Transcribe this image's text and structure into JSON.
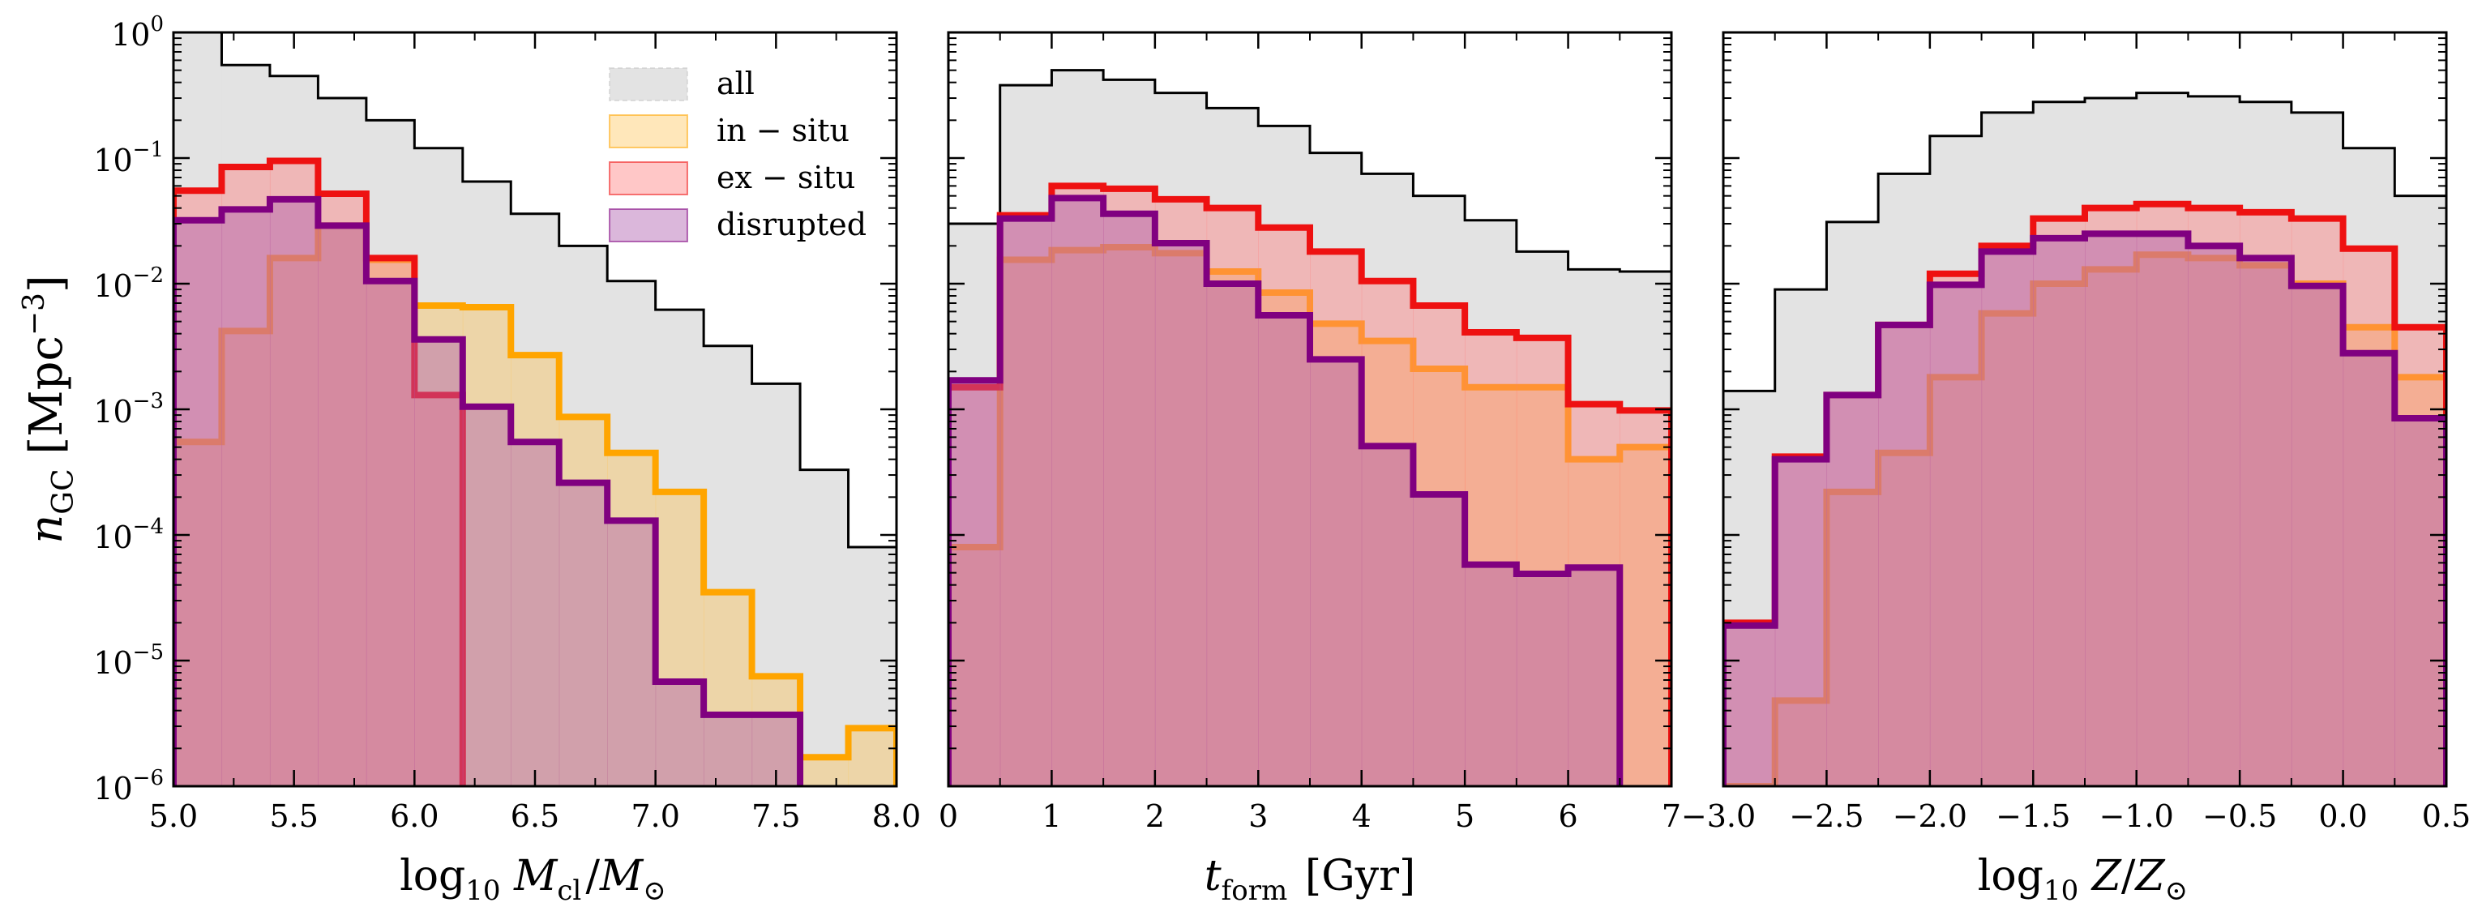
{
  "figure": {
    "ylabel": "n_GC [Mpc^-3]",
    "ylabel_main": "n",
    "ylabel_sub": "GC",
    "ylabel_unit_open": " [Mpc",
    "ylabel_unit_exp": "−3",
    "ylabel_unit_close": "]"
  },
  "legend": {
    "placement": "top-right of first panel",
    "entries": [
      {
        "key": "all",
        "label": "all"
      },
      {
        "key": "insitu",
        "label": "in − situ"
      },
      {
        "key": "exsitu",
        "label": "ex − situ"
      },
      {
        "key": "disrupted",
        "label": "disrupted"
      }
    ]
  },
  "colors": {
    "all_line": "#000000",
    "all_fill": "#e3e3e3",
    "insitu_line": "#ffa500",
    "insitu_fill": "#ffc04a",
    "exsitu_line": "#ee1111",
    "exsitu_fill": "#ff7a7a",
    "disrupted_line": "#800080",
    "disrupted_fill": "#b060b0"
  },
  "chart_data": [
    {
      "type": "area",
      "style": "step histogram",
      "xlabel": "log10 M_cl / M_sun",
      "xlabel_parts": {
        "pre": "log",
        "pre_sub": "10",
        "var": "M",
        "var_sub": "cl",
        "mid": "/M",
        "mid_sub": "⊙"
      },
      "ylabel": "n_GC [Mpc^-3]",
      "yscale": "log",
      "ylim": [
        1e-06,
        1
      ],
      "xlim": [
        5.0,
        8.0
      ],
      "xticks": [
        5.0,
        5.5,
        6.0,
        6.5,
        7.0,
        7.5,
        8.0
      ],
      "xticklabels": [
        "5.0",
        "5.5",
        "6.0",
        "6.5",
        "7.0",
        "7.5",
        "8.0"
      ],
      "yticklabels": [
        {
          "base": "10",
          "exp": "0"
        },
        {
          "base": "10",
          "exp": "−1"
        },
        {
          "base": "10",
          "exp": "−2"
        },
        {
          "base": "10",
          "exp": "−3"
        },
        {
          "base": "10",
          "exp": "−4"
        },
        {
          "base": "10",
          "exp": "−5"
        },
        {
          "base": "10",
          "exp": "−6"
        }
      ],
      "bin_edges": [
        5.0,
        5.2,
        5.4,
        5.6,
        5.8,
        6.0,
        6.2,
        6.4,
        6.6,
        6.8,
        7.0,
        7.2,
        7.4,
        7.6,
        7.8,
        8.0
      ],
      "series": [
        {
          "name": "all",
          "values": [
            1.0,
            0.55,
            0.45,
            0.3,
            0.2,
            0.12,
            0.065,
            0.036,
            0.02,
            0.0105,
            0.0062,
            0.0032,
            0.0016,
            0.00033,
            8e-05
          ]
        },
        {
          "name": "in − situ",
          "values": [
            0.00055,
            0.0042,
            0.016,
            0.029,
            0.0155,
            0.0067,
            0.0065,
            0.0027,
            0.00087,
            0.00045,
            0.00022,
            3.5e-05,
            7.5e-06,
            1.7e-06,
            2.9e-06
          ]
        },
        {
          "name": "ex − situ",
          "values": [
            0.055,
            0.085,
            0.095,
            0.052,
            0.016,
            0.0013,
            null,
            null,
            null,
            null,
            null,
            null,
            null,
            null,
            null
          ]
        },
        {
          "name": "disrupted",
          "values": [
            0.032,
            0.039,
            0.047,
            0.029,
            0.0105,
            0.0036,
            0.00105,
            0.00055,
            0.00026,
            0.00013,
            6.8e-06,
            3.7e-06,
            3.7e-06,
            null,
            null
          ]
        }
      ]
    },
    {
      "type": "area",
      "style": "step histogram",
      "xlabel": "t_form [Gyr]",
      "xlabel_parts": {
        "var": "t",
        "var_sub": "form",
        "unit": " [Gyr]"
      },
      "yscale": "log",
      "ylim": [
        1e-06,
        1
      ],
      "xlim": [
        0,
        7
      ],
      "xticks": [
        0,
        1,
        2,
        3,
        4,
        5,
        6,
        7
      ],
      "xticklabels": [
        "0",
        "1",
        "2",
        "3",
        "4",
        "5",
        "6",
        "7"
      ],
      "bin_edges": [
        0.0,
        0.5,
        1.0,
        1.5,
        2.0,
        2.5,
        3.0,
        3.5,
        4.0,
        4.5,
        5.0,
        5.5,
        6.0,
        6.5,
        7.0
      ],
      "series": [
        {
          "name": "all",
          "values": [
            0.03,
            0.38,
            0.5,
            0.42,
            0.33,
            0.25,
            0.18,
            0.11,
            0.075,
            0.05,
            0.032,
            0.018,
            0.013,
            0.0125
          ]
        },
        {
          "name": "in − situ",
          "values": [
            8e-05,
            0.0155,
            0.0185,
            0.0195,
            0.0175,
            0.0125,
            0.0085,
            0.0048,
            0.0035,
            0.0021,
            0.0015,
            0.0015,
            0.0004,
            0.0005
          ]
        },
        {
          "name": "ex − situ",
          "values": [
            0.0015,
            0.035,
            0.06,
            0.057,
            0.047,
            0.04,
            0.028,
            0.018,
            0.0105,
            0.0067,
            0.0041,
            0.0037,
            0.0011,
            0.00098
          ]
        },
        {
          "name": "disrupted",
          "values": [
            0.0017,
            0.033,
            0.048,
            0.036,
            0.021,
            0.01,
            0.0056,
            0.0025,
            0.00051,
            0.00021,
            5.8e-05,
            4.9e-05,
            5.5e-05,
            null
          ]
        }
      ]
    },
    {
      "type": "area",
      "style": "step histogram",
      "xlabel": "log10 Z / Z_sun",
      "xlabel_parts": {
        "pre": "log",
        "pre_sub": "10",
        "var": "Z",
        "mid": "/Z",
        "mid_sub": "⊙"
      },
      "yscale": "log",
      "ylim": [
        1e-06,
        1
      ],
      "xlim": [
        -3.0,
        0.5
      ],
      "xticks": [
        -3.0,
        -2.5,
        -2.0,
        -1.5,
        -1.0,
        -0.5,
        0.0,
        0.5
      ],
      "xticklabels": [
        "−3.0",
        "−2.5",
        "−2.0",
        "−1.5",
        "−1.0",
        "−0.5",
        "0.0",
        "0.5"
      ],
      "bin_edges": [
        -3.0,
        -2.75,
        -2.5,
        -2.25,
        -2.0,
        -1.75,
        -1.5,
        -1.25,
        -1.0,
        -0.75,
        -0.5,
        -0.25,
        0.0,
        0.25,
        0.5
      ],
      "series": [
        {
          "name": "all",
          "values": [
            0.0014,
            0.009,
            0.031,
            0.075,
            0.15,
            0.23,
            0.28,
            0.3,
            0.33,
            0.31,
            0.28,
            0.23,
            0.12,
            0.05
          ]
        },
        {
          "name": "in − situ",
          "values": [
            1e-06,
            4.8e-06,
            0.00022,
            0.00045,
            0.0018,
            0.0058,
            0.01,
            0.013,
            0.017,
            0.016,
            0.014,
            0.01,
            0.0045,
            0.0018
          ]
        },
        {
          "name": "ex − situ",
          "values": [
            2e-05,
            0.00042,
            0.0013,
            0.0047,
            0.012,
            0.02,
            0.033,
            0.04,
            0.043,
            0.04,
            0.037,
            0.033,
            0.019,
            0.0045
          ]
        },
        {
          "name": "disrupted",
          "values": [
            1.9e-05,
            0.0004,
            0.0013,
            0.0047,
            0.0098,
            0.018,
            0.023,
            0.025,
            0.025,
            0.02,
            0.016,
            0.0096,
            0.0028,
            0.00085
          ]
        }
      ]
    }
  ]
}
